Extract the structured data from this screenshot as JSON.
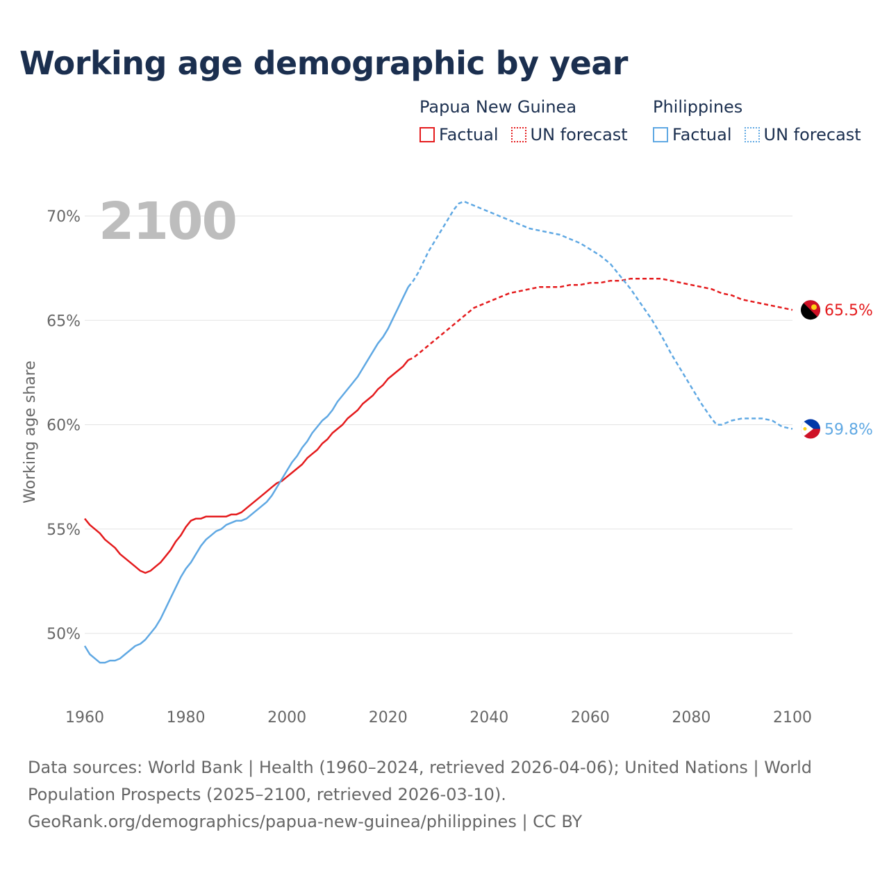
{
  "title": "Working age demographic by year",
  "legend": {
    "groups": [
      {
        "name": "Papua New Guinea",
        "color": "#e41a1c",
        "items": [
          {
            "label": "Factual",
            "style": "solid"
          },
          {
            "label": "UN forecast",
            "style": "dotted"
          }
        ]
      },
      {
        "name": "Philippines",
        "color": "#5fa8e3",
        "items": [
          {
            "label": "Factual",
            "style": "solid"
          },
          {
            "label": "UN forecast",
            "style": "dotted"
          }
        ]
      }
    ]
  },
  "chart_data": {
    "type": "line",
    "title": "Working age demographic by year",
    "xlabel": "",
    "ylabel": "Working age share",
    "xlim": [
      1960,
      2100
    ],
    "ylim": [
      47,
      71
    ],
    "x_ticks": [
      1960,
      1980,
      2000,
      2020,
      2040,
      2060,
      2080,
      2100
    ],
    "y_ticks": [
      50,
      55,
      60,
      65,
      70
    ],
    "y_tick_labels": [
      "50%",
      "55%",
      "60%",
      "65%",
      "70%"
    ],
    "grid": true,
    "year_watermark": "2100",
    "forecast_start": 2024,
    "series": [
      {
        "name": "Papua New Guinea",
        "color": "#e41a1c",
        "end_label": "65.5%",
        "factual": [
          [
            1960,
            55.5
          ],
          [
            1961,
            55.2
          ],
          [
            1962,
            55.0
          ],
          [
            1963,
            54.8
          ],
          [
            1964,
            54.5
          ],
          [
            1965,
            54.3
          ],
          [
            1966,
            54.1
          ],
          [
            1967,
            53.8
          ],
          [
            1968,
            53.6
          ],
          [
            1969,
            53.4
          ],
          [
            1970,
            53.2
          ],
          [
            1971,
            53.0
          ],
          [
            1972,
            52.9
          ],
          [
            1973,
            53.0
          ],
          [
            1974,
            53.2
          ],
          [
            1975,
            53.4
          ],
          [
            1976,
            53.7
          ],
          [
            1977,
            54.0
          ],
          [
            1978,
            54.4
          ],
          [
            1979,
            54.7
          ],
          [
            1980,
            55.1
          ],
          [
            1981,
            55.4
          ],
          [
            1982,
            55.5
          ],
          [
            1983,
            55.5
          ],
          [
            1984,
            55.6
          ],
          [
            1985,
            55.6
          ],
          [
            1986,
            55.6
          ],
          [
            1987,
            55.6
          ],
          [
            1988,
            55.6
          ],
          [
            1989,
            55.7
          ],
          [
            1990,
            55.7
          ],
          [
            1991,
            55.8
          ],
          [
            1992,
            56.0
          ],
          [
            1993,
            56.2
          ],
          [
            1994,
            56.4
          ],
          [
            1995,
            56.6
          ],
          [
            1996,
            56.8
          ],
          [
            1997,
            57.0
          ],
          [
            1998,
            57.2
          ],
          [
            1999,
            57.3
          ],
          [
            2000,
            57.5
          ],
          [
            2001,
            57.7
          ],
          [
            2002,
            57.9
          ],
          [
            2003,
            58.1
          ],
          [
            2004,
            58.4
          ],
          [
            2005,
            58.6
          ],
          [
            2006,
            58.8
          ],
          [
            2007,
            59.1
          ],
          [
            2008,
            59.3
          ],
          [
            2009,
            59.6
          ],
          [
            2010,
            59.8
          ],
          [
            2011,
            60.0
          ],
          [
            2012,
            60.3
          ],
          [
            2013,
            60.5
          ],
          [
            2014,
            60.7
          ],
          [
            2015,
            61.0
          ],
          [
            2016,
            61.2
          ],
          [
            2017,
            61.4
          ],
          [
            2018,
            61.7
          ],
          [
            2019,
            61.9
          ],
          [
            2020,
            62.2
          ],
          [
            2021,
            62.4
          ],
          [
            2022,
            62.6
          ],
          [
            2023,
            62.8
          ],
          [
            2024,
            63.1
          ]
        ],
        "forecast": [
          [
            2024,
            63.1
          ],
          [
            2025,
            63.2
          ],
          [
            2026,
            63.4
          ],
          [
            2027,
            63.6
          ],
          [
            2028,
            63.8
          ],
          [
            2029,
            64.0
          ],
          [
            2030,
            64.2
          ],
          [
            2031,
            64.4
          ],
          [
            2032,
            64.6
          ],
          [
            2033,
            64.8
          ],
          [
            2034,
            65.0
          ],
          [
            2035,
            65.2
          ],
          [
            2036,
            65.4
          ],
          [
            2037,
            65.6
          ],
          [
            2038,
            65.7
          ],
          [
            2039,
            65.8
          ],
          [
            2040,
            65.9
          ],
          [
            2042,
            66.1
          ],
          [
            2044,
            66.3
          ],
          [
            2046,
            66.4
          ],
          [
            2048,
            66.5
          ],
          [
            2050,
            66.6
          ],
          [
            2052,
            66.6
          ],
          [
            2054,
            66.6
          ],
          [
            2056,
            66.7
          ],
          [
            2058,
            66.7
          ],
          [
            2060,
            66.8
          ],
          [
            2062,
            66.8
          ],
          [
            2064,
            66.9
          ],
          [
            2066,
            66.9
          ],
          [
            2068,
            67.0
          ],
          [
            2070,
            67.0
          ],
          [
            2072,
            67.0
          ],
          [
            2074,
            67.0
          ],
          [
            2076,
            66.9
          ],
          [
            2078,
            66.8
          ],
          [
            2080,
            66.7
          ],
          [
            2082,
            66.6
          ],
          [
            2084,
            66.5
          ],
          [
            2086,
            66.3
          ],
          [
            2088,
            66.2
          ],
          [
            2090,
            66.0
          ],
          [
            2092,
            65.9
          ],
          [
            2094,
            65.8
          ],
          [
            2096,
            65.7
          ],
          [
            2098,
            65.6
          ],
          [
            2100,
            65.5
          ]
        ]
      },
      {
        "name": "Philippines",
        "color": "#5fa8e3",
        "end_label": "59.8%",
        "factual": [
          [
            1960,
            49.4
          ],
          [
            1961,
            49.0
          ],
          [
            1962,
            48.8
          ],
          [
            1963,
            48.6
          ],
          [
            1964,
            48.6
          ],
          [
            1965,
            48.7
          ],
          [
            1966,
            48.7
          ],
          [
            1967,
            48.8
          ],
          [
            1968,
            49.0
          ],
          [
            1969,
            49.2
          ],
          [
            1970,
            49.4
          ],
          [
            1971,
            49.5
          ],
          [
            1972,
            49.7
          ],
          [
            1973,
            50.0
          ],
          [
            1974,
            50.3
          ],
          [
            1975,
            50.7
          ],
          [
            1976,
            51.2
          ],
          [
            1977,
            51.7
          ],
          [
            1978,
            52.2
          ],
          [
            1979,
            52.7
          ],
          [
            1980,
            53.1
          ],
          [
            1981,
            53.4
          ],
          [
            1982,
            53.8
          ],
          [
            1983,
            54.2
          ],
          [
            1984,
            54.5
          ],
          [
            1985,
            54.7
          ],
          [
            1986,
            54.9
          ],
          [
            1987,
            55.0
          ],
          [
            1988,
            55.2
          ],
          [
            1989,
            55.3
          ],
          [
            1990,
            55.4
          ],
          [
            1991,
            55.4
          ],
          [
            1992,
            55.5
          ],
          [
            1993,
            55.7
          ],
          [
            1994,
            55.9
          ],
          [
            1995,
            56.1
          ],
          [
            1996,
            56.3
          ],
          [
            1997,
            56.6
          ],
          [
            1998,
            57.0
          ],
          [
            1999,
            57.4
          ],
          [
            2000,
            57.8
          ],
          [
            2001,
            58.2
          ],
          [
            2002,
            58.5
          ],
          [
            2003,
            58.9
          ],
          [
            2004,
            59.2
          ],
          [
            2005,
            59.6
          ],
          [
            2006,
            59.9
          ],
          [
            2007,
            60.2
          ],
          [
            2008,
            60.4
          ],
          [
            2009,
            60.7
          ],
          [
            2010,
            61.1
          ],
          [
            2011,
            61.4
          ],
          [
            2012,
            61.7
          ],
          [
            2013,
            62.0
          ],
          [
            2014,
            62.3
          ],
          [
            2015,
            62.7
          ],
          [
            2016,
            63.1
          ],
          [
            2017,
            63.5
          ],
          [
            2018,
            63.9
          ],
          [
            2019,
            64.2
          ],
          [
            2020,
            64.6
          ],
          [
            2021,
            65.1
          ],
          [
            2022,
            65.6
          ],
          [
            2023,
            66.1
          ],
          [
            2024,
            66.6
          ]
        ],
        "forecast": [
          [
            2024,
            66.6
          ],
          [
            2025,
            66.9
          ],
          [
            2026,
            67.3
          ],
          [
            2027,
            67.8
          ],
          [
            2028,
            68.3
          ],
          [
            2029,
            68.7
          ],
          [
            2030,
            69.1
          ],
          [
            2031,
            69.5
          ],
          [
            2032,
            69.9
          ],
          [
            2033,
            70.3
          ],
          [
            2034,
            70.6
          ],
          [
            2035,
            70.7
          ],
          [
            2036,
            70.6
          ],
          [
            2038,
            70.4
          ],
          [
            2040,
            70.2
          ],
          [
            2042,
            70.0
          ],
          [
            2044,
            69.8
          ],
          [
            2046,
            69.6
          ],
          [
            2048,
            69.4
          ],
          [
            2050,
            69.3
          ],
          [
            2052,
            69.2
          ],
          [
            2054,
            69.1
          ],
          [
            2056,
            68.9
          ],
          [
            2058,
            68.7
          ],
          [
            2060,
            68.4
          ],
          [
            2062,
            68.1
          ],
          [
            2064,
            67.7
          ],
          [
            2066,
            67.1
          ],
          [
            2068,
            66.5
          ],
          [
            2070,
            65.8
          ],
          [
            2072,
            65.1
          ],
          [
            2074,
            64.3
          ],
          [
            2076,
            63.4
          ],
          [
            2078,
            62.6
          ],
          [
            2080,
            61.8
          ],
          [
            2082,
            61.0
          ],
          [
            2084,
            60.3
          ],
          [
            2085,
            60.0
          ],
          [
            2086,
            60.0
          ],
          [
            2088,
            60.2
          ],
          [
            2090,
            60.3
          ],
          [
            2092,
            60.3
          ],
          [
            2094,
            60.3
          ],
          [
            2096,
            60.2
          ],
          [
            2098,
            59.9
          ],
          [
            2100,
            59.8
          ]
        ]
      }
    ]
  },
  "source": {
    "line1": "Data sources: World Bank | Health (1960–2024, retrieved 2026-04-06); United Nations | World",
    "line2": "Population Prospects (2025–2100, retrieved 2026-03-10).",
    "line3": "GeoRank.org/demographics/papua-new-guinea/philippines | CC BY"
  }
}
